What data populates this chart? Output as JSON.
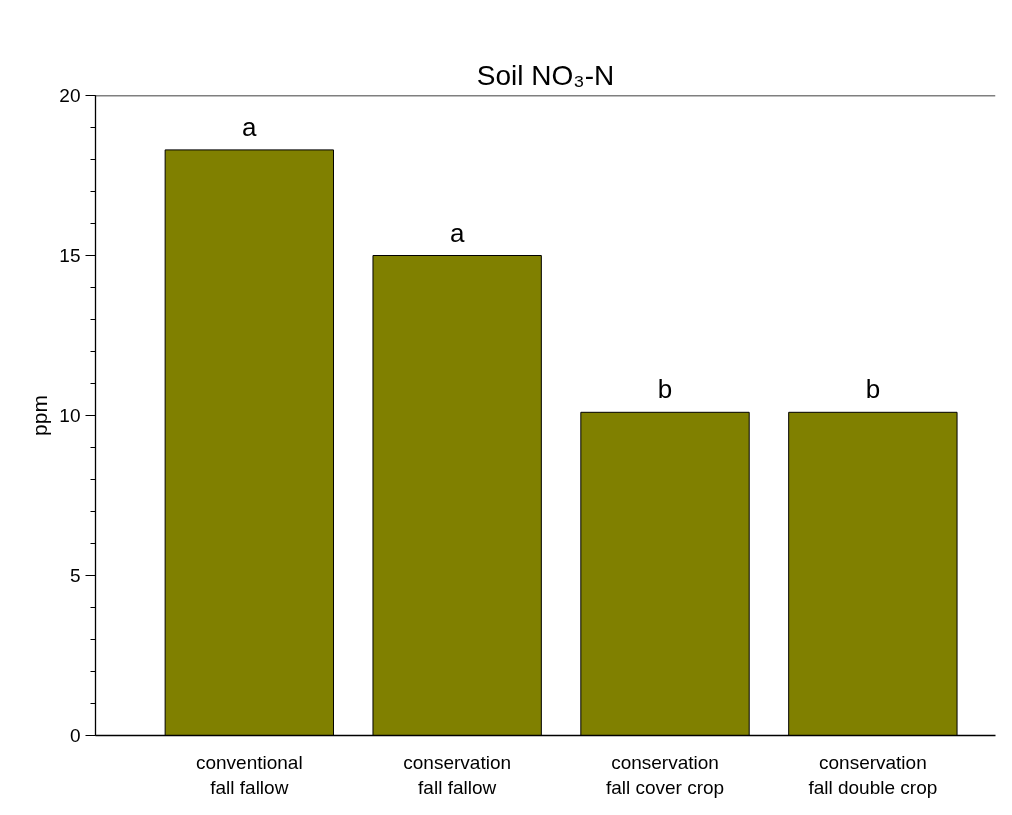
{
  "chart_data": {
    "type": "bar",
    "title": "Soil NO₃-N",
    "ylabel": "ppm",
    "categories": [
      "conventional\nfall fallow",
      "conservation\nfall fallow",
      "conservation\nfall cover crop",
      "conservation\nfall double crop"
    ],
    "values": [
      18.3,
      15.0,
      10.1,
      10.1
    ],
    "color": "#808000",
    "ylim": [
      0,
      20
    ],
    "yticks": [
      0,
      5,
      10,
      15,
      20
    ],
    "grid": false,
    "annotations": [
      {
        "text": "a",
        "x": "conventional\nfall fallow",
        "y": 18.3
      },
      {
        "text": "a",
        "x": "conservation\nfall fallow",
        "y": 15.0
      },
      {
        "text": "b",
        "x": "conservation\nfall cover crop",
        "y": 10.1
      },
      {
        "text": "b",
        "x": "conservation\nfall double crop",
        "y": 10.1
      }
    ]
  }
}
